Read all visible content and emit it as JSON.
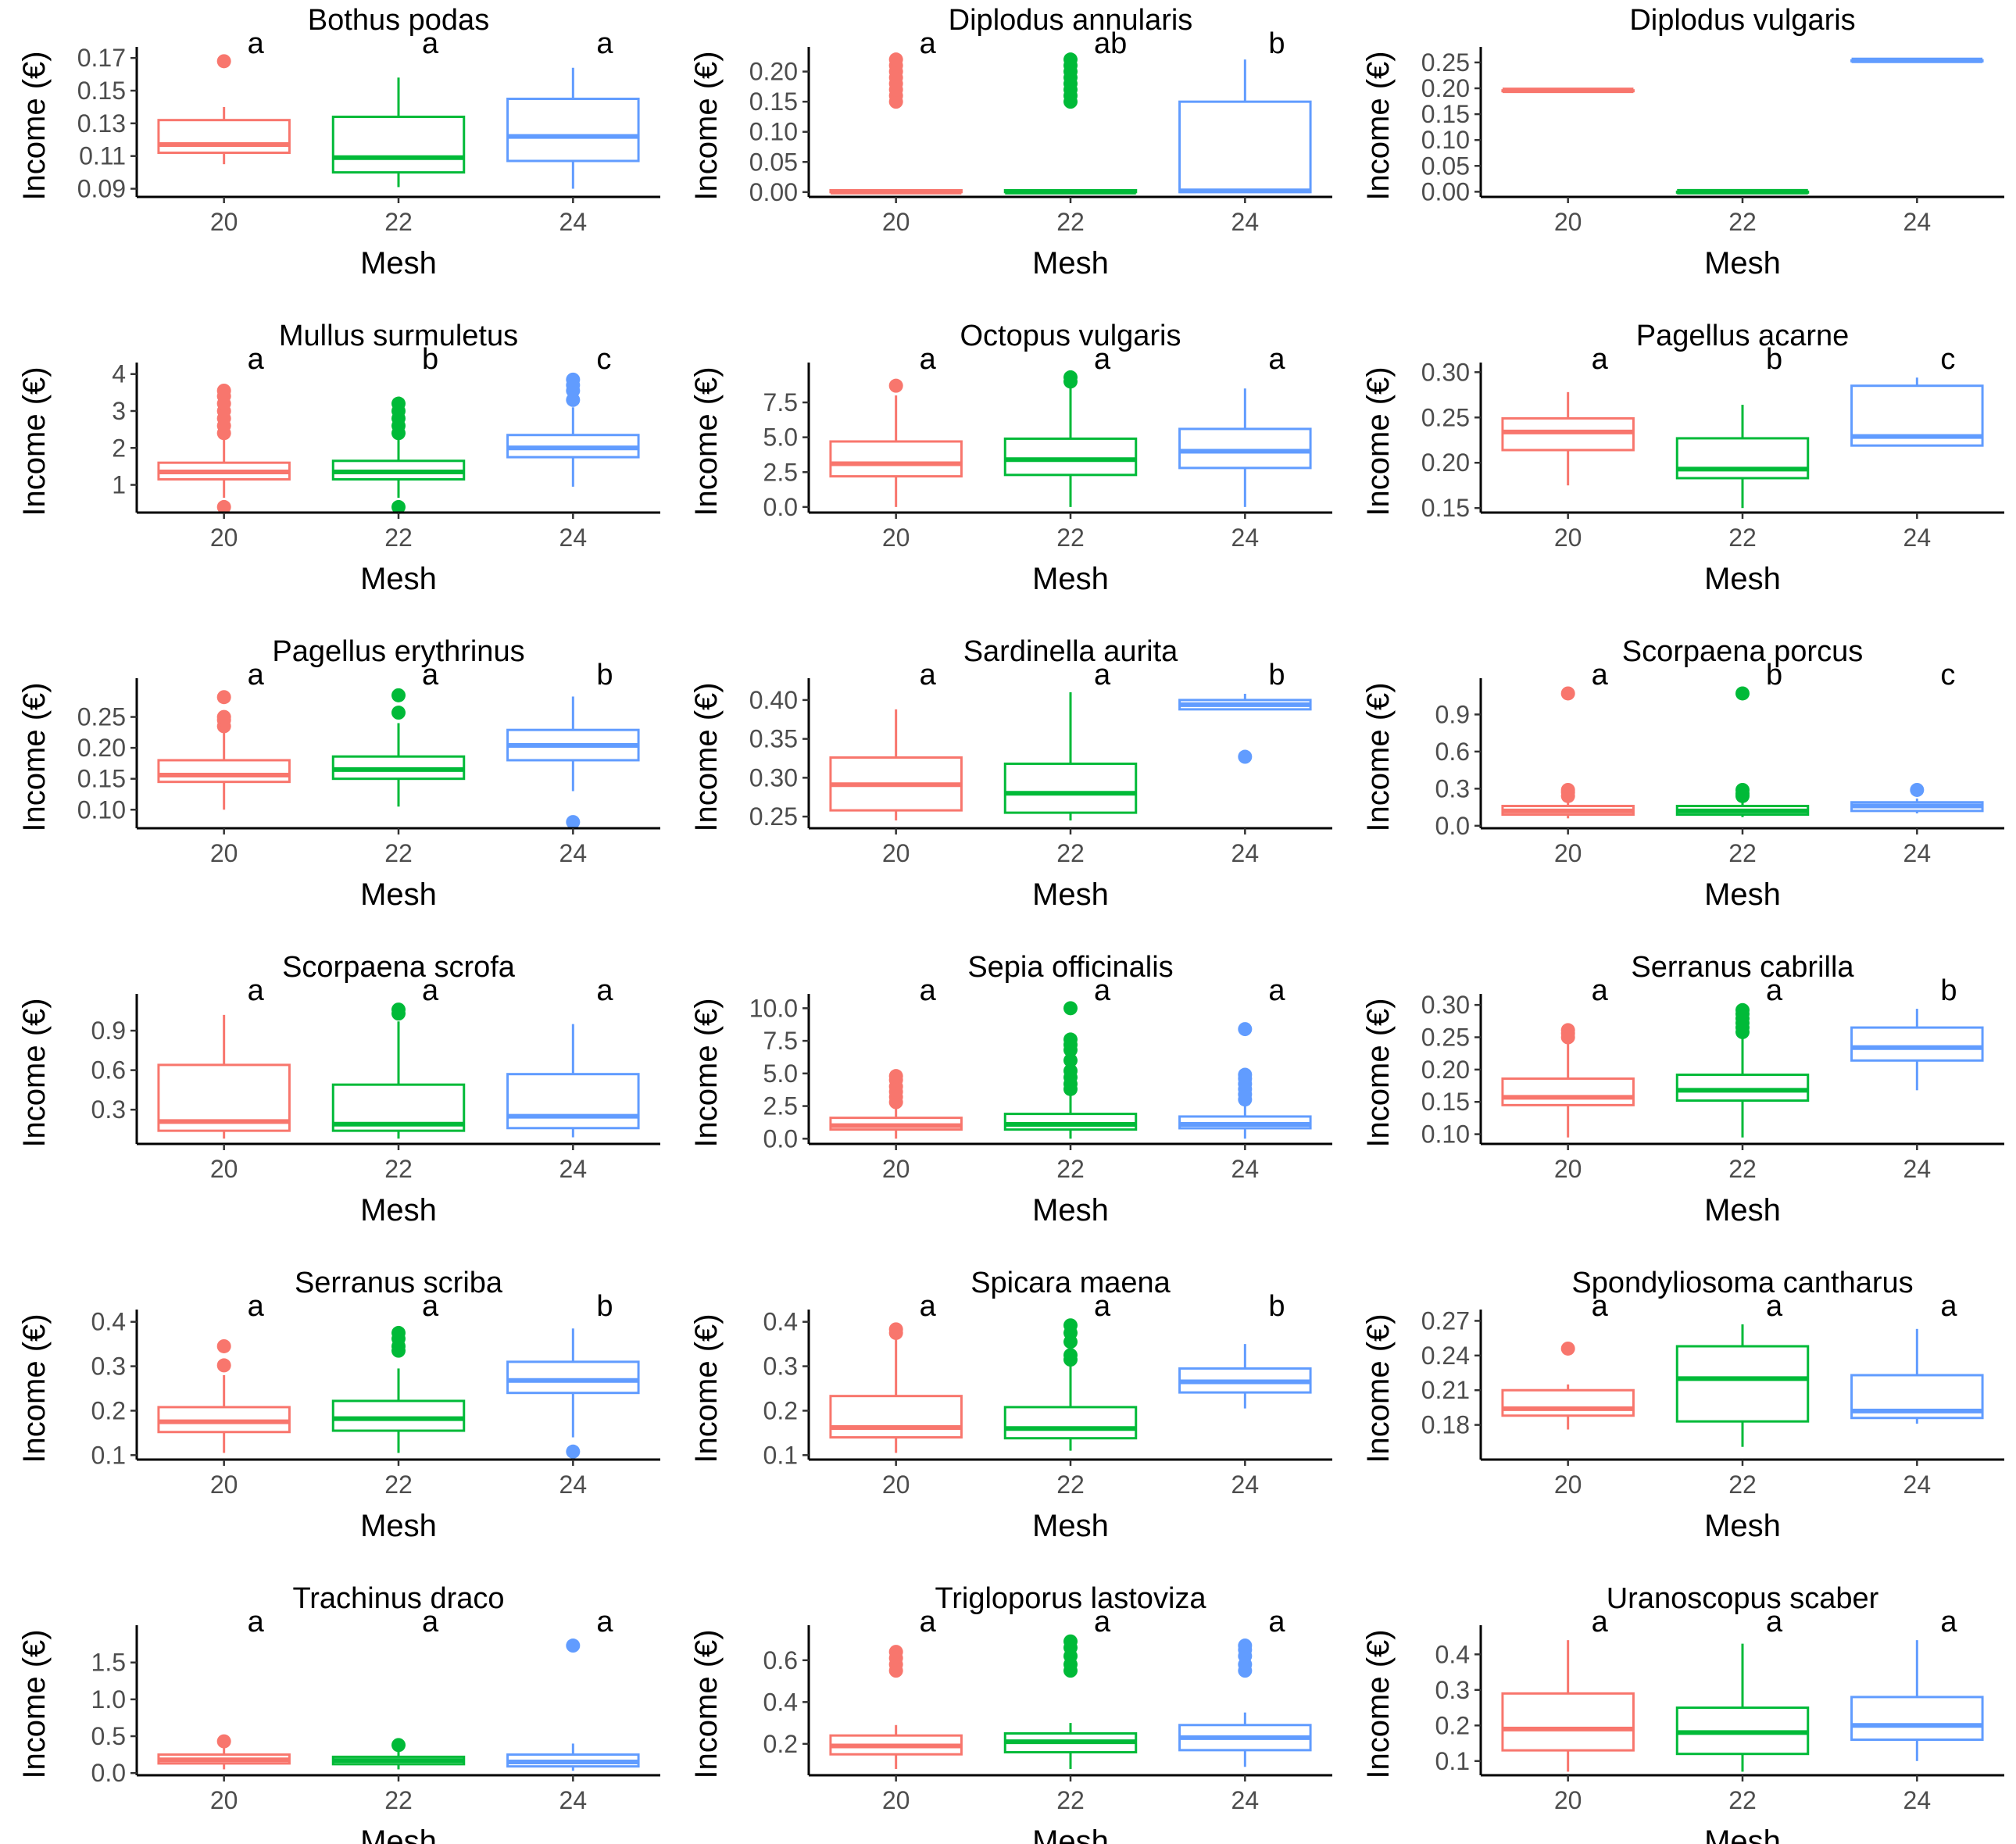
{
  "figure": {
    "xlabel": "Mesh",
    "ylabel": "Income (€)",
    "groups": [
      "20",
      "22",
      "24"
    ],
    "colors": {
      "20": "#F8766D",
      "22": "#00BA38",
      "24": "#619CFF"
    }
  },
  "chart_data": [
    {
      "type": "box",
      "title": "Bothus podas",
      "categories": [
        "20",
        "22",
        "24"
      ],
      "ylim": [
        0.085,
        0.172
      ],
      "yticks": [
        0.09,
        0.11,
        0.13,
        0.15,
        0.17
      ],
      "ytick_labels": [
        "0.09",
        "0.11",
        "0.13",
        "0.15",
        "0.17"
      ],
      "letters": [
        "a",
        "a",
        "a"
      ],
      "boxes": [
        {
          "min": 0.105,
          "q1": 0.112,
          "median": 0.117,
          "q3": 0.132,
          "max": 0.14,
          "outliers": [
            0.168
          ]
        },
        {
          "min": 0.091,
          "q1": 0.1,
          "median": 0.109,
          "q3": 0.134,
          "max": 0.158,
          "outliers": []
        },
        {
          "min": 0.09,
          "q1": 0.107,
          "median": 0.122,
          "q3": 0.145,
          "max": 0.164,
          "outliers": []
        }
      ]
    },
    {
      "type": "box",
      "title": "Diplodus annularis",
      "categories": [
        "20",
        "22",
        "24"
      ],
      "ylim": [
        -0.008,
        0.228
      ],
      "yticks": [
        0,
        0.05,
        0.1,
        0.15,
        0.2
      ],
      "ytick_labels": [
        "0.00",
        "0.05",
        "0.10",
        "0.15",
        "0.20"
      ],
      "letters": [
        "a",
        "ab",
        "b"
      ],
      "boxes": [
        {
          "min": 0.0,
          "q1": 0.0,
          "median": 0.0,
          "q3": 0.003,
          "max": 0.003,
          "outliers": [
            0.15,
            0.16,
            0.17,
            0.18,
            0.19,
            0.2,
            0.21,
            0.22
          ]
        },
        {
          "min": 0.0,
          "q1": 0.0,
          "median": 0.0,
          "q3": 0.003,
          "max": 0.003,
          "outliers": [
            0.15,
            0.16,
            0.17,
            0.18,
            0.19,
            0.2,
            0.21,
            0.22
          ]
        },
        {
          "min": 0.0,
          "q1": 0.0,
          "median": 0.002,
          "q3": 0.15,
          "max": 0.22,
          "outliers": []
        }
      ]
    },
    {
      "type": "box",
      "title": "Diplodus vulgaris",
      "categories": [
        "20",
        "22",
        "24"
      ],
      "ylim": [
        -0.01,
        0.265
      ],
      "yticks": [
        0,
        0.05,
        0.1,
        0.15,
        0.2,
        0.25
      ],
      "ytick_labels": [
        "0.00",
        "0.05",
        "0.10",
        "0.15",
        "0.20",
        "0.25"
      ],
      "letters": [
        "",
        "",
        ""
      ],
      "boxes": [
        {
          "min": 0.196,
          "q1": 0.196,
          "median": 0.196,
          "q3": 0.196,
          "max": 0.196,
          "outliers": []
        },
        {
          "min": 0.0,
          "q1": 0.0,
          "median": 0.0,
          "q3": 0.0,
          "max": 0.0,
          "outliers": []
        },
        {
          "min": 0.254,
          "q1": 0.254,
          "median": 0.254,
          "q3": 0.254,
          "max": 0.254,
          "outliers": []
        }
      ]
    },
    {
      "type": "box",
      "title": "Mullus surmuletus",
      "categories": [
        "20",
        "22",
        "24"
      ],
      "ylim": [
        0.25,
        4.1
      ],
      "yticks": [
        1,
        2,
        3,
        4
      ],
      "ytick_labels": [
        "1",
        "2",
        "3",
        "4"
      ],
      "letters": [
        "a",
        "b",
        "c"
      ],
      "boxes": [
        {
          "min": 0.65,
          "q1": 1.15,
          "median": 1.35,
          "q3": 1.6,
          "max": 2.25,
          "outliers": [
            2.4,
            2.6,
            2.8,
            3.0,
            3.2,
            3.4,
            3.55,
            0.4
          ]
        },
        {
          "min": 0.65,
          "q1": 1.15,
          "median": 1.35,
          "q3": 1.65,
          "max": 2.25,
          "outliers": [
            2.4,
            2.6,
            2.8,
            3.0,
            3.2,
            0.4
          ]
        },
        {
          "min": 0.95,
          "q1": 1.75,
          "median": 2.0,
          "q3": 2.35,
          "max": 3.1,
          "outliers": [
            3.3,
            3.55,
            3.7,
            3.85
          ]
        }
      ]
    },
    {
      "type": "box",
      "title": "Octopus vulgaris",
      "categories": [
        "20",
        "22",
        "24"
      ],
      "ylim": [
        -0.4,
        9.8
      ],
      "yticks": [
        0,
        2.5,
        5,
        7.5
      ],
      "ytick_labels": [
        "0.0",
        "2.5",
        "5.0",
        "7.5"
      ],
      "letters": [
        "a",
        "a",
        "a"
      ],
      "boxes": [
        {
          "min": 0.0,
          "q1": 2.2,
          "median": 3.1,
          "q3": 4.7,
          "max": 8.0,
          "outliers": [
            8.7
          ]
        },
        {
          "min": 0.0,
          "q1": 2.3,
          "median": 3.4,
          "q3": 4.9,
          "max": 8.8,
          "outliers": [
            9.0,
            9.3
          ]
        },
        {
          "min": 0.0,
          "q1": 2.8,
          "median": 4.0,
          "q3": 5.6,
          "max": 8.5,
          "outliers": []
        }
      ]
    },
    {
      "type": "box",
      "title": "Pagellus acarne",
      "categories": [
        "20",
        "22",
        "24"
      ],
      "ylim": [
        0.145,
        0.302
      ],
      "yticks": [
        0.15,
        0.2,
        0.25,
        0.3
      ],
      "ytick_labels": [
        "0.15",
        "0.20",
        "0.25",
        "0.30"
      ],
      "letters": [
        "a",
        "b",
        "c"
      ],
      "boxes": [
        {
          "min": 0.175,
          "q1": 0.214,
          "median": 0.234,
          "q3": 0.249,
          "max": 0.278,
          "outliers": []
        },
        {
          "min": 0.15,
          "q1": 0.183,
          "median": 0.193,
          "q3": 0.227,
          "max": 0.264,
          "outliers": []
        },
        {
          "min": 0.219,
          "q1": 0.219,
          "median": 0.229,
          "q3": 0.285,
          "max": 0.294,
          "outliers": []
        }
      ]
    },
    {
      "type": "box",
      "title": "Pagellus erythrinus",
      "categories": [
        "20",
        "22",
        "24"
      ],
      "ylim": [
        0.07,
        0.3
      ],
      "yticks": [
        0.1,
        0.15,
        0.2,
        0.25
      ],
      "ytick_labels": [
        "0.10",
        "0.15",
        "0.20",
        "0.25"
      ],
      "letters": [
        "a",
        "a",
        "b"
      ],
      "boxes": [
        {
          "min": 0.1,
          "q1": 0.145,
          "median": 0.156,
          "q3": 0.18,
          "max": 0.225,
          "outliers": [
            0.235,
            0.245,
            0.25,
            0.282
          ]
        },
        {
          "min": 0.105,
          "q1": 0.15,
          "median": 0.165,
          "q3": 0.186,
          "max": 0.24,
          "outliers": [
            0.257,
            0.285
          ]
        },
        {
          "min": 0.13,
          "q1": 0.18,
          "median": 0.204,
          "q3": 0.229,
          "max": 0.283,
          "outliers": [
            0.08
          ]
        }
      ]
    },
    {
      "type": "box",
      "title": "Sardinella aurita",
      "categories": [
        "20",
        "22",
        "24"
      ],
      "ylim": [
        0.235,
        0.418
      ],
      "yticks": [
        0.25,
        0.3,
        0.35,
        0.4
      ],
      "ytick_labels": [
        "0.25",
        "0.30",
        "0.35",
        "0.40"
      ],
      "letters": [
        "a",
        "a",
        "b"
      ],
      "boxes": [
        {
          "min": 0.245,
          "q1": 0.258,
          "median": 0.291,
          "q3": 0.326,
          "max": 0.388,
          "outliers": []
        },
        {
          "min": 0.245,
          "q1": 0.255,
          "median": 0.28,
          "q3": 0.318,
          "max": 0.41,
          "outliers": []
        },
        {
          "min": 0.388,
          "q1": 0.388,
          "median": 0.394,
          "q3": 0.4,
          "max": 0.408,
          "outliers": [
            0.327
          ]
        }
      ]
    },
    {
      "type": "box",
      "title": "Scorpaena porcus",
      "categories": [
        "20",
        "22",
        "24"
      ],
      "ylim": [
        -0.02,
        1.13
      ],
      "yticks": [
        0,
        0.3,
        0.6,
        0.9
      ],
      "ytick_labels": [
        "0.0",
        "0.3",
        "0.6",
        "0.9"
      ],
      "letters": [
        "a",
        "b",
        "c"
      ],
      "boxes": [
        {
          "min": 0.06,
          "q1": 0.09,
          "median": 0.12,
          "q3": 0.16,
          "max": 0.2,
          "outliers": [
            0.24,
            0.27,
            0.29,
            1.07
          ]
        },
        {
          "min": 0.07,
          "q1": 0.09,
          "median": 0.12,
          "q3": 0.16,
          "max": 0.2,
          "outliers": [
            0.24,
            0.26,
            0.29,
            1.07
          ]
        },
        {
          "min": 0.1,
          "q1": 0.12,
          "median": 0.16,
          "q3": 0.19,
          "max": 0.22,
          "outliers": [
            0.29
          ]
        }
      ]
    },
    {
      "type": "box",
      "title": "Scorpaena scrofa",
      "categories": [
        "20",
        "22",
        "24"
      ],
      "ylim": [
        0.04,
        1.12
      ],
      "yticks": [
        0.3,
        0.6,
        0.9
      ],
      "ytick_labels": [
        "0.3",
        "0.6",
        "0.9"
      ],
      "letters": [
        "a",
        "a",
        "a"
      ],
      "boxes": [
        {
          "min": 0.08,
          "q1": 0.14,
          "median": 0.21,
          "q3": 0.64,
          "max": 1.02,
          "outliers": []
        },
        {
          "min": 0.08,
          "q1": 0.14,
          "median": 0.19,
          "q3": 0.49,
          "max": 0.97,
          "outliers": [
            1.03,
            1.06
          ]
        },
        {
          "min": 0.09,
          "q1": 0.16,
          "median": 0.25,
          "q3": 0.57,
          "max": 0.95,
          "outliers": []
        }
      ]
    },
    {
      "type": "box",
      "title": "Sepia officinalis",
      "categories": [
        "20",
        "22",
        "24"
      ],
      "ylim": [
        -0.4,
        10.5
      ],
      "yticks": [
        0,
        2.5,
        5,
        7.5,
        10
      ],
      "ytick_labels": [
        "0.0",
        "2.5",
        "5.0",
        "7.5",
        "10.0"
      ],
      "letters": [
        "a",
        "a",
        "a"
      ],
      "boxes": [
        {
          "min": 0.0,
          "q1": 0.7,
          "median": 1.0,
          "q3": 1.6,
          "max": 2.5,
          "outliers": [
            2.8,
            3.2,
            3.6,
            4.0,
            4.5,
            4.8
          ]
        },
        {
          "min": 0.0,
          "q1": 0.7,
          "median": 1.1,
          "q3": 1.9,
          "max": 3.5,
          "outliers": [
            3.8,
            4.2,
            4.7,
            5.2,
            6.0,
            6.8,
            7.2,
            7.6,
            10.0
          ]
        },
        {
          "min": 0.0,
          "q1": 0.8,
          "median": 1.1,
          "q3": 1.7,
          "max": 2.6,
          "outliers": [
            3.0,
            3.4,
            3.8,
            4.2,
            4.6,
            4.9,
            8.4
          ]
        }
      ]
    },
    {
      "type": "box",
      "title": "Serranus cabrilla",
      "categories": [
        "20",
        "22",
        "24"
      ],
      "ylim": [
        0.085,
        0.305
      ],
      "yticks": [
        0.1,
        0.15,
        0.2,
        0.25,
        0.3
      ],
      "ytick_labels": [
        "0.10",
        "0.15",
        "0.20",
        "0.25",
        "0.30"
      ],
      "letters": [
        "a",
        "a",
        "b"
      ],
      "boxes": [
        {
          "min": 0.095,
          "q1": 0.145,
          "median": 0.157,
          "q3": 0.186,
          "max": 0.245,
          "outliers": [
            0.25,
            0.256,
            0.261
          ]
        },
        {
          "min": 0.095,
          "q1": 0.152,
          "median": 0.168,
          "q3": 0.192,
          "max": 0.25,
          "outliers": [
            0.258,
            0.265,
            0.272,
            0.279,
            0.286,
            0.292
          ]
        },
        {
          "min": 0.168,
          "q1": 0.214,
          "median": 0.234,
          "q3": 0.265,
          "max": 0.294,
          "outliers": []
        }
      ]
    },
    {
      "type": "box",
      "title": "Serranus scriba",
      "categories": [
        "20",
        "22",
        "24"
      ],
      "ylim": [
        0.09,
        0.41
      ],
      "yticks": [
        0.1,
        0.2,
        0.3,
        0.4
      ],
      "ytick_labels": [
        "0.1",
        "0.2",
        "0.3",
        "0.4"
      ],
      "letters": [
        "a",
        "a",
        "b"
      ],
      "boxes": [
        {
          "min": 0.105,
          "q1": 0.152,
          "median": 0.175,
          "q3": 0.208,
          "max": 0.28,
          "outliers": [
            0.302,
            0.345
          ]
        },
        {
          "min": 0.105,
          "q1": 0.155,
          "median": 0.182,
          "q3": 0.222,
          "max": 0.295,
          "outliers": [
            0.335,
            0.345,
            0.362,
            0.375
          ]
        },
        {
          "min": 0.14,
          "q1": 0.24,
          "median": 0.268,
          "q3": 0.31,
          "max": 0.385,
          "outliers": [
            0.108
          ]
        }
      ]
    },
    {
      "type": "box",
      "title": "Spicara maena",
      "categories": [
        "20",
        "22",
        "24"
      ],
      "ylim": [
        0.09,
        0.41
      ],
      "yticks": [
        0.1,
        0.2,
        0.3,
        0.4
      ],
      "ytick_labels": [
        "0.1",
        "0.2",
        "0.3",
        "0.4"
      ],
      "letters": [
        "a",
        "a",
        "b"
      ],
      "boxes": [
        {
          "min": 0.105,
          "q1": 0.14,
          "median": 0.162,
          "q3": 0.233,
          "max": 0.37,
          "outliers": [
            0.375,
            0.383
          ]
        },
        {
          "min": 0.11,
          "q1": 0.138,
          "median": 0.16,
          "q3": 0.208,
          "max": 0.3,
          "outliers": [
            0.315,
            0.325,
            0.355,
            0.375,
            0.392
          ]
        },
        {
          "min": 0.205,
          "q1": 0.241,
          "median": 0.265,
          "q3": 0.295,
          "max": 0.35,
          "outliers": []
        }
      ]
    },
    {
      "type": "box",
      "title": "Spondyliosoma cantharus",
      "categories": [
        "20",
        "22",
        "24"
      ],
      "ylim": [
        0.15,
        0.273
      ],
      "yticks": [
        0.18,
        0.21,
        0.24,
        0.27
      ],
      "ytick_labels": [
        "0.18",
        "0.21",
        "0.24",
        "0.27"
      ],
      "letters": [
        "a",
        "a",
        "a"
      ],
      "boxes": [
        {
          "min": 0.176,
          "q1": 0.188,
          "median": 0.194,
          "q3": 0.21,
          "max": 0.215,
          "outliers": [
            0.246
          ]
        },
        {
          "min": 0.161,
          "q1": 0.183,
          "median": 0.22,
          "q3": 0.248,
          "max": 0.267,
          "outliers": []
        },
        {
          "min": 0.181,
          "q1": 0.186,
          "median": 0.192,
          "q3": 0.223,
          "max": 0.263,
          "outliers": []
        }
      ]
    },
    {
      "type": "box",
      "title": "Trachinus draco",
      "categories": [
        "20",
        "22",
        "24"
      ],
      "ylim": [
        -0.03,
        1.9
      ],
      "yticks": [
        0,
        0.5,
        1,
        1.5
      ],
      "ytick_labels": [
        "0.0",
        "0.5",
        "1.0",
        "1.5"
      ],
      "letters": [
        "a",
        "a",
        "a"
      ],
      "boxes": [
        {
          "min": 0.05,
          "q1": 0.13,
          "median": 0.18,
          "q3": 0.25,
          "max": 0.35,
          "outliers": [
            0.43
          ]
        },
        {
          "min": 0.05,
          "q1": 0.12,
          "median": 0.17,
          "q3": 0.22,
          "max": 0.3,
          "outliers": [
            0.38
          ]
        },
        {
          "min": 0.03,
          "q1": 0.09,
          "median": 0.15,
          "q3": 0.25,
          "max": 0.4,
          "outliers": [
            1.73
          ]
        }
      ]
    },
    {
      "type": "box",
      "title": "Trigloporus lastoviza",
      "categories": [
        "20",
        "22",
        "24"
      ],
      "ylim": [
        0.05,
        0.73
      ],
      "yticks": [
        0.2,
        0.4,
        0.6
      ],
      "ytick_labels": [
        "0.2",
        "0.4",
        "0.6"
      ],
      "letters": [
        "a",
        "a",
        "a"
      ],
      "boxes": [
        {
          "min": 0.08,
          "q1": 0.15,
          "median": 0.19,
          "q3": 0.24,
          "max": 0.29,
          "outliers": [
            0.55,
            0.58,
            0.61,
            0.64
          ]
        },
        {
          "min": 0.08,
          "q1": 0.16,
          "median": 0.21,
          "q3": 0.25,
          "max": 0.3,
          "outliers": [
            0.55,
            0.58,
            0.62,
            0.66,
            0.69
          ]
        },
        {
          "min": 0.09,
          "q1": 0.17,
          "median": 0.23,
          "q3": 0.29,
          "max": 0.35,
          "outliers": [
            0.55,
            0.58,
            0.62,
            0.65,
            0.67
          ]
        }
      ]
    },
    {
      "type": "box",
      "title": "Uranoscopus scaber",
      "categories": [
        "20",
        "22",
        "24"
      ],
      "ylim": [
        0.06,
        0.46
      ],
      "yticks": [
        0.1,
        0.2,
        0.3,
        0.4
      ],
      "ytick_labels": [
        "0.1",
        "0.2",
        "0.3",
        "0.4"
      ],
      "letters": [
        "a",
        "a",
        "a"
      ],
      "boxes": [
        {
          "min": 0.07,
          "q1": 0.13,
          "median": 0.19,
          "q3": 0.29,
          "max": 0.44,
          "outliers": []
        },
        {
          "min": 0.07,
          "q1": 0.12,
          "median": 0.18,
          "q3": 0.25,
          "max": 0.43,
          "outliers": []
        },
        {
          "min": 0.1,
          "q1": 0.16,
          "median": 0.2,
          "q3": 0.28,
          "max": 0.44,
          "outliers": []
        }
      ]
    }
  ]
}
